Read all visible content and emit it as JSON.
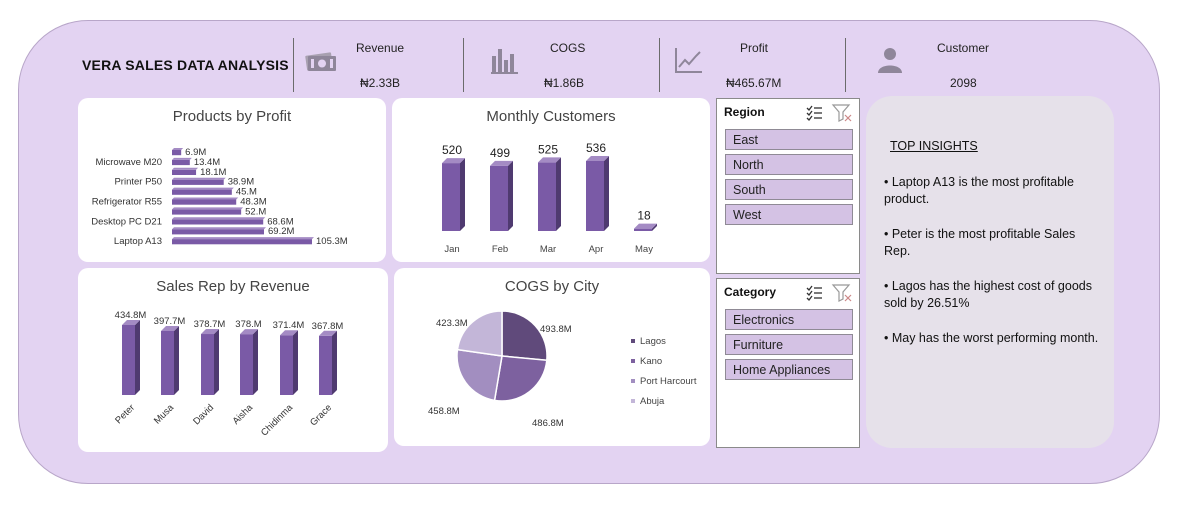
{
  "dashboard": {
    "title": "VERA SALES DATA ANALYSIS",
    "colors": {
      "background": "#e3d3f2",
      "bar": "#7a5aa6",
      "accent": "#6b5a7c"
    }
  },
  "kpis": [
    {
      "label": "Revenue",
      "value": "₦2.33B",
      "icon": "money-icon"
    },
    {
      "label": "COGS",
      "value": "₦1.86B",
      "icon": "bar-chart-icon"
    },
    {
      "label": "Profit",
      "value": "₦465.67M",
      "icon": "line-chart-icon"
    },
    {
      "label": "Customer",
      "value": "2098",
      "icon": "person-icon"
    }
  ],
  "slicers": {
    "region": {
      "title": "Region",
      "items": [
        "East",
        "North",
        "South",
        "West"
      ]
    },
    "category": {
      "title": "Category",
      "items": [
        "Electronics",
        "Furniture",
        "Home Appliances"
      ]
    }
  },
  "insights": {
    "title": "TOP INSIGHTS",
    "items": [
      "• Laptop A13 is the most profitable product.",
      "• Peter is the most profitable Sales Rep.",
      "• Lagos has the highest cost of goods sold by 26.51%",
      "• May has the worst performing month."
    ]
  },
  "chart_data": [
    {
      "type": "bar",
      "orientation": "horizontal",
      "title": "Products by Profit",
      "tick_labels": [
        "Microwave M20",
        "Printer P50",
        "Refrigerator R55",
        "Desktop PC D21",
        "Laptop A13"
      ],
      "values": [
        6.9,
        13.4,
        18.1,
        38.9,
        45.0,
        48.3,
        52.0,
        68.6,
        69.2,
        105.3
      ],
      "data_labels": [
        "6.9M",
        "13.4M",
        "18.1M",
        "38.9M",
        "45.M",
        "48.3M",
        "52.M",
        "68.6M",
        "69.2M",
        "105.3M"
      ],
      "unit": "M"
    },
    {
      "type": "bar",
      "title": "Monthly Customers",
      "categories": [
        "Jan",
        "Feb",
        "Mar",
        "Apr",
        "May"
      ],
      "values": [
        520,
        499,
        525,
        536,
        18
      ]
    },
    {
      "type": "bar",
      "title": "Sales Rep by Revenue",
      "categories": [
        "Peter",
        "Musa",
        "David",
        "Aisha",
        "Chidinma",
        "Grace"
      ],
      "values": [
        434.8,
        397.7,
        378.7,
        378.0,
        371.4,
        367.8
      ],
      "data_labels": [
        "434.8M",
        "397.7M",
        "378.7M",
        "378.M",
        "371.4M",
        "367.8M"
      ]
    },
    {
      "type": "pie",
      "title": "COGS by City",
      "categories": [
        "Lagos",
        "Kano",
        "Port Harcourt",
        "Abuja"
      ],
      "values": [
        493.8,
        486.8,
        458.8,
        423.3
      ],
      "data_labels": [
        "493.8M",
        "486.8M",
        "458.8M",
        "423.3M"
      ],
      "colors": [
        "#604a7b",
        "#7d619f",
        "#a28ec0",
        "#c3b6d8"
      ],
      "legend": "right"
    }
  ]
}
